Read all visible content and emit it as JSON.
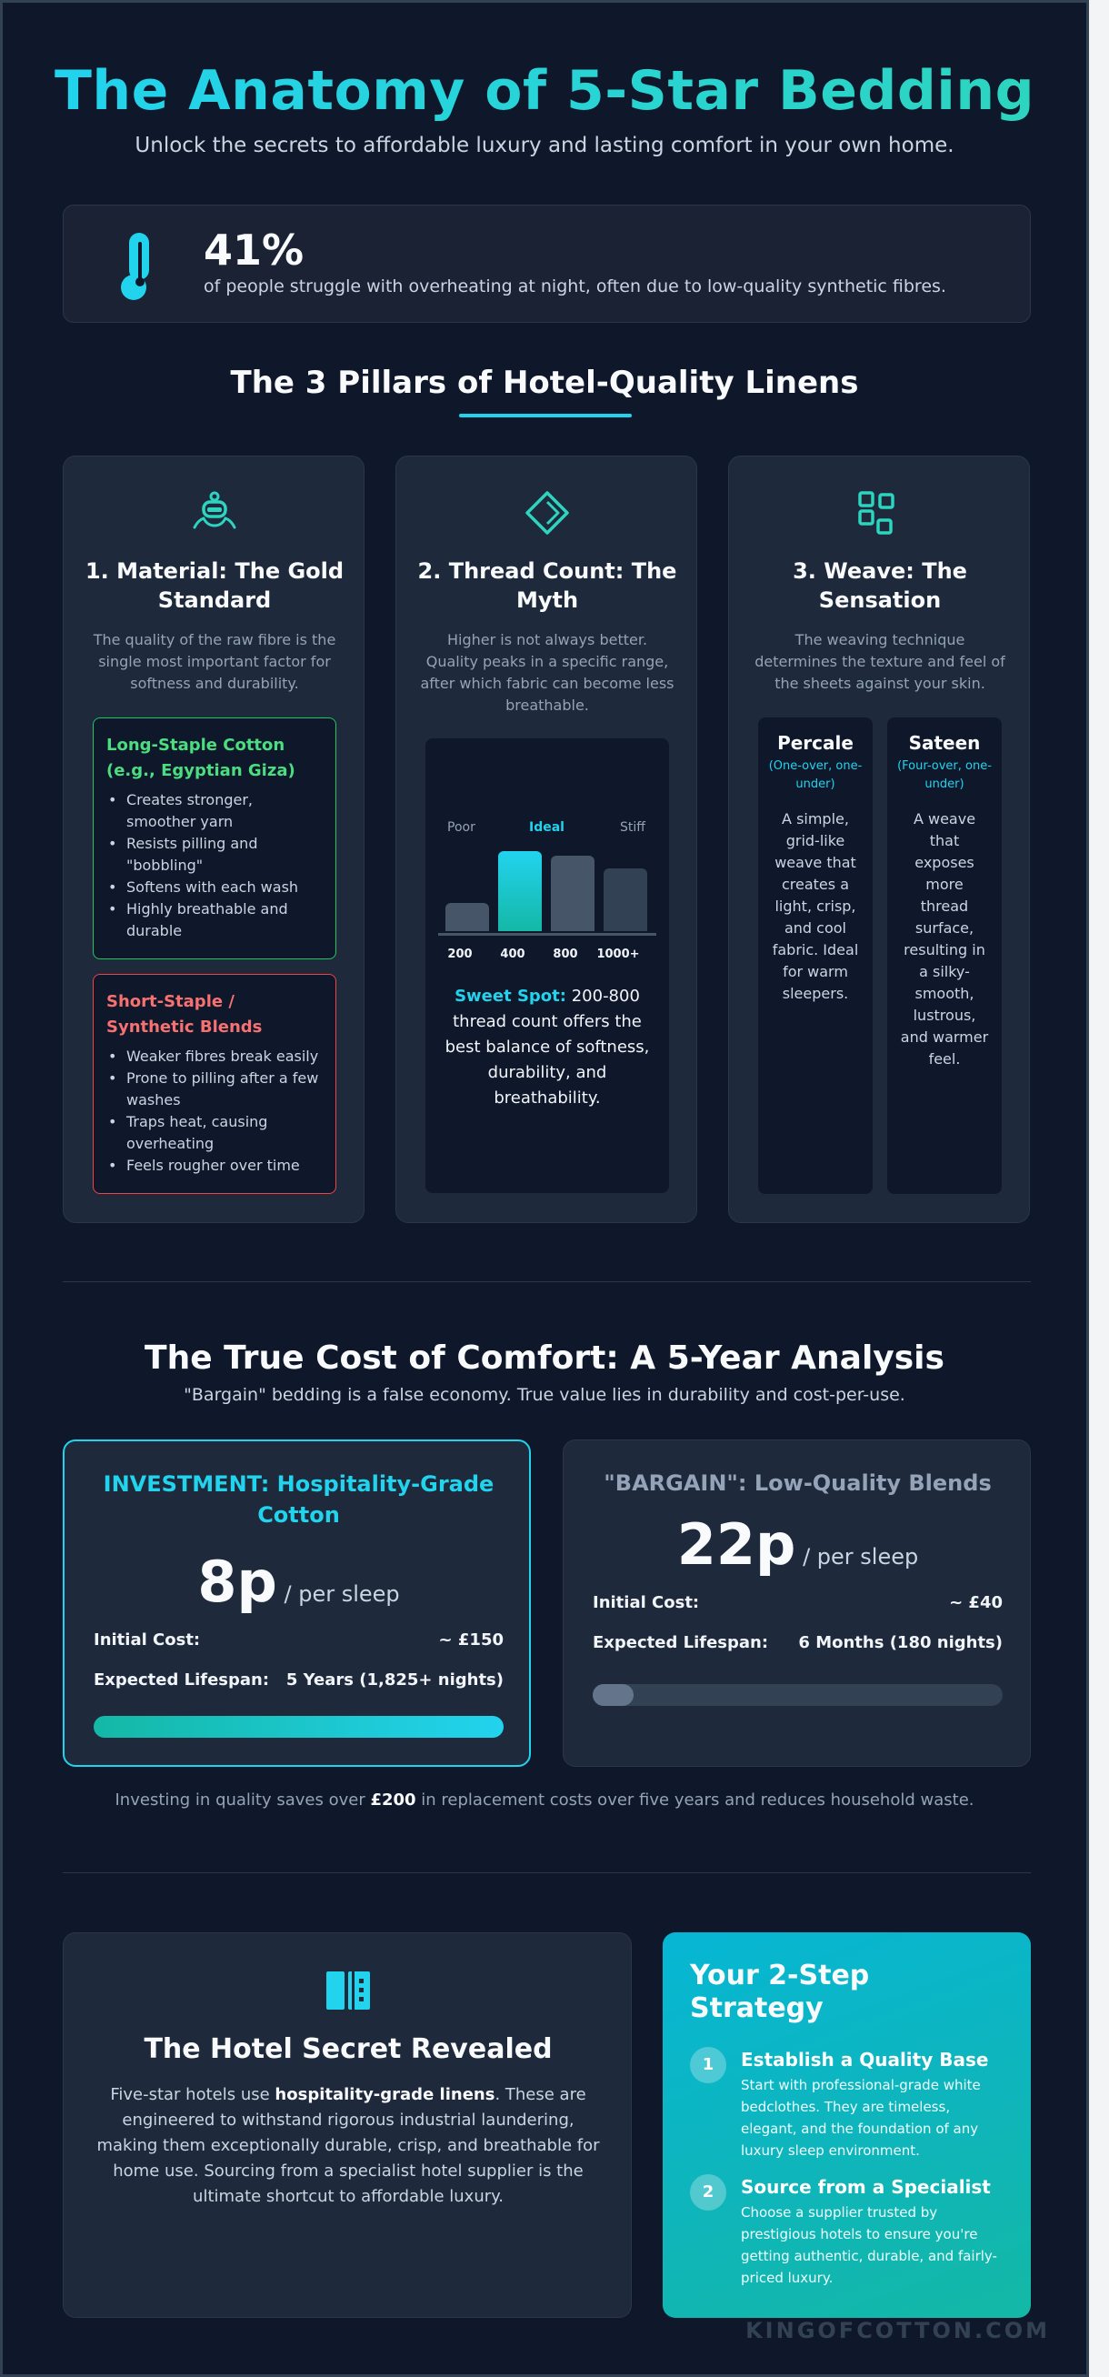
{
  "header": {
    "title": "The Anatomy of 5-Star Bedding",
    "subtitle": "Unlock the secrets to affordable luxury and lasting comfort in your own home."
  },
  "stat": {
    "icon": "thermometer-icon",
    "value": "41%",
    "text": "of people struggle with overheating at night, often due to low-quality synthetic fibres."
  },
  "pillars": {
    "title": "The 3 Pillars of Hotel-Quality Linens",
    "material": {
      "icon": "cotton-plant-icon",
      "title": "1. Material: The Gold Standard",
      "desc": "The quality of the raw fibre is the single most important factor for softness and durability.",
      "good": {
        "title": "Long-Staple Cotton (e.g., Egyptian Giza)",
        "items": [
          "Creates stronger, smoother yarn",
          "Resists pilling and \"bobbling\"",
          "Softens with each wash",
          "Highly breathable and durable"
        ]
      },
      "bad": {
        "title": "Short-Staple / Synthetic Blends",
        "items": [
          "Weaker fibres break easily",
          "Prone to pilling after a few washes",
          "Traps heat, causing overheating",
          "Feels rougher over time"
        ]
      }
    },
    "thread": {
      "icon": "diamond-icon",
      "title": "2. Thread Count: The Myth",
      "desc": "Higher is not always better. Quality peaks in a specific range, after which fabric can become less breathable.",
      "labels": {
        "poor": "Poor",
        "ideal": "Ideal",
        "stiff": "Stiff"
      },
      "bars": [
        {
          "tick": "200",
          "level": 0.35
        },
        {
          "tick": "400",
          "level": 1.0
        },
        {
          "tick": "800",
          "level": 0.94
        },
        {
          "tick": "1000+",
          "level": 0.78
        }
      ],
      "note_highlight": "Sweet Spot:",
      "note_text": " 200-800 thread count offers the best balance of softness, durability, and breathability."
    },
    "weave": {
      "icon": "grid-icon",
      "title": "3. Weave: The Sensation",
      "desc": "The weaving technique determines the texture and feel of the sheets against your skin.",
      "percale": {
        "name": "Percale",
        "sub": "(One-over, one-under)",
        "desc": "A simple, grid-like weave that creates a light, crisp, and cool fabric. Ideal for warm sleepers."
      },
      "sateen": {
        "name": "Sateen",
        "sub": "(Four-over, one-under)",
        "desc": "A weave that exposes more thread surface, resulting in a silky-smooth, lustrous, and warmer feel."
      }
    }
  },
  "cost": {
    "title": "The True Cost of Comfort: A 5-Year Analysis",
    "subtitle": "\"Bargain\" bedding is a false economy. True value lies in durability and cost-per-use.",
    "investment": {
      "title": "INVESTMENT: Hospitality-Grade Cotton",
      "price": "8p",
      "per": " / per sleep",
      "initial_label": "Initial Cost:",
      "initial_value": "~ £150",
      "lifespan_label": "Expected Lifespan:",
      "lifespan_value": "5 Years (1,825+ nights)",
      "lifespan_fraction": 1.0
    },
    "bargain": {
      "title": "\"BARGAIN\": Low-Quality Blends",
      "price": "22p",
      "per": " / per sleep",
      "initial_label": "Initial Cost:",
      "initial_value": "~ £40",
      "lifespan_label": "Expected Lifespan:",
      "lifespan_value": "6 Months (180 nights)",
      "lifespan_fraction": 0.1
    },
    "savings_pre": "Investing in quality saves over ",
    "savings_amount": "£200",
    "savings_post": " in replacement costs over five years and reduces household waste."
  },
  "secret": {
    "icon": "linen-cabinet-icon",
    "title": "The Hotel Secret Revealed",
    "text_pre": "Five-star hotels use ",
    "text_bold": "hospitality-grade linens",
    "text_post": ". These are engineered to withstand rigorous industrial laundering, making them exceptionally durable, crisp, and breathable for home use. Sourcing from a specialist hotel supplier is the ultimate shortcut to affordable luxury."
  },
  "strategy": {
    "title": "Your 2-Step Strategy",
    "steps": [
      {
        "num": "1",
        "title": "Establish a Quality Base",
        "text": "Start with professional-grade white bedclothes. They are timeless, elegant, and the foundation of any luxury sleep environment."
      },
      {
        "num": "2",
        "title": "Source from a Specialist",
        "text": "Choose a supplier trusted by prestigious hotels to ensure you're getting authentic, durable, and fairly-priced luxury."
      }
    ]
  },
  "watermark": "KINGOFCOTTON.COM",
  "colors": {
    "background": "#0f172a",
    "card": "#1e293b",
    "accent_cyan": "#22d3ee",
    "accent_teal": "#2dd4bf",
    "good": "#4ade80",
    "bad": "#f87171"
  }
}
